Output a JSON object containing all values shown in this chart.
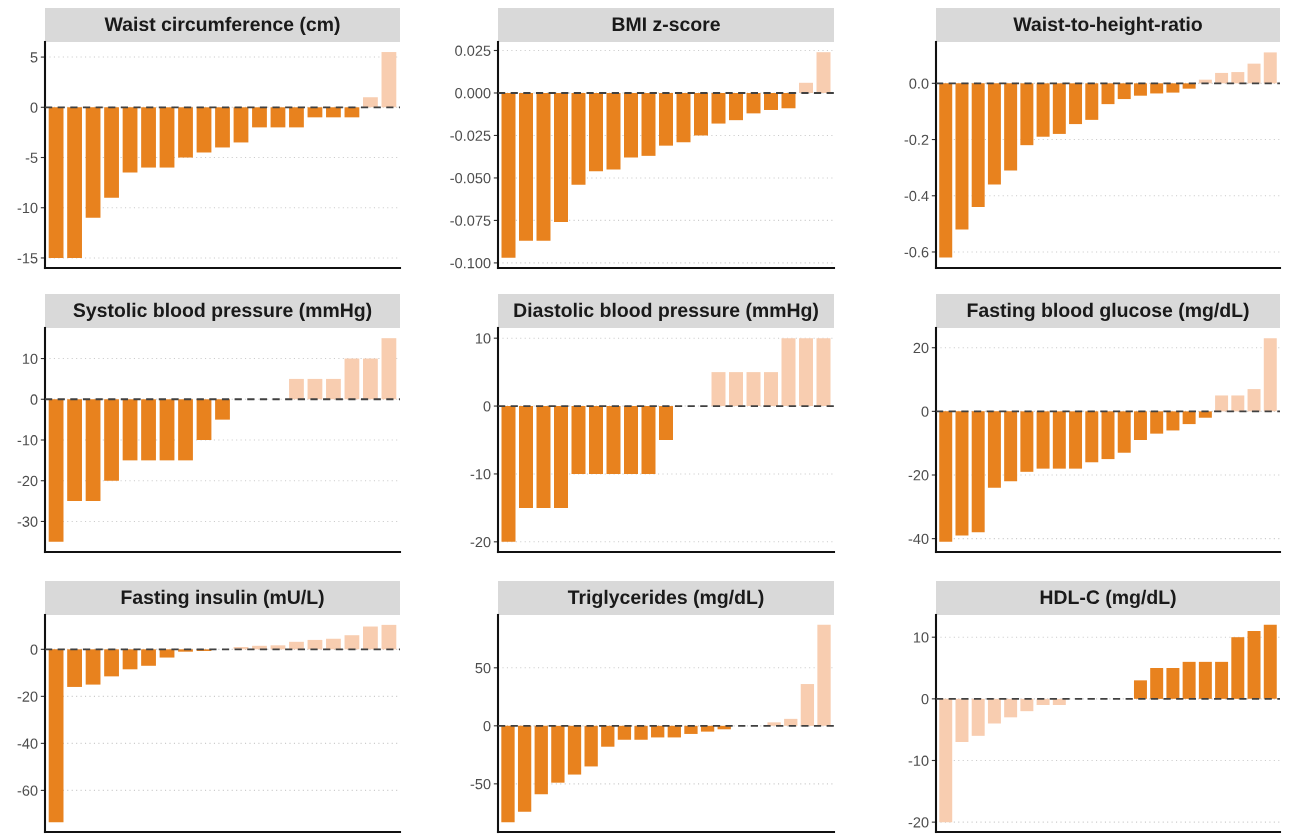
{
  "chart_data": [
    {
      "type": "bar",
      "title": "Waist circumference (cm)",
      "categories": [
        null,
        null,
        null,
        null,
        null,
        null,
        null,
        null,
        null,
        null,
        null,
        null,
        null,
        null,
        null,
        null,
        null,
        null,
        null
      ],
      "values": [
        -15,
        -15,
        -11,
        -9,
        -6.5,
        -6,
        -6,
        -5,
        -4.5,
        -4,
        -3.5,
        -2,
        -2,
        -2,
        -1,
        -1,
        -1,
        1,
        5.5
      ],
      "colors": [
        "#e8821e",
        "#e8821e",
        "#e8821e",
        "#e8821e",
        "#e8821e",
        "#e8821e",
        "#e8821e",
        "#e8821e",
        "#e8821e",
        "#e8821e",
        "#e8821e",
        "#e8821e",
        "#e8821e",
        "#e8821e",
        "#e8821e",
        "#e8821e",
        "#e8821e",
        "#f8cdb0",
        "#f8cdb0"
      ],
      "ylim": [
        -16,
        6.5
      ],
      "yticks": [
        -15,
        -10,
        -5,
        0,
        5
      ],
      "grid": "y",
      "tick_labels": "y",
      "ref_lines": [
        {
          "axis": "y",
          "value": 0,
          "line_style": "dashed",
          "color": "#404040"
        }
      ]
    },
    {
      "type": "bar",
      "title": "BMI z-score",
      "categories": [
        null,
        null,
        null,
        null,
        null,
        null,
        null,
        null,
        null,
        null,
        null,
        null,
        null,
        null,
        null,
        null,
        null,
        null,
        null
      ],
      "values": [
        -0.097,
        -0.087,
        -0.087,
        -0.076,
        -0.054,
        -0.046,
        -0.045,
        -0.038,
        -0.037,
        -0.031,
        -0.029,
        -0.025,
        -0.018,
        -0.016,
        -0.012,
        -0.01,
        -0.009,
        0.006,
        0.024
      ],
      "colors": [
        "#e8821e",
        "#e8821e",
        "#e8821e",
        "#e8821e",
        "#e8821e",
        "#e8821e",
        "#e8821e",
        "#e8821e",
        "#e8821e",
        "#e8821e",
        "#e8821e",
        "#e8821e",
        "#e8821e",
        "#e8821e",
        "#e8821e",
        "#e8821e",
        "#e8821e",
        "#f8cdb0",
        "#f8cdb0"
      ],
      "ylim": [
        -0.103,
        0.03
      ],
      "yticks": [
        {
          "value": -0.1,
          "label": "-0.100"
        },
        {
          "value": -0.075,
          "label": "-0.075"
        },
        {
          "value": -0.05,
          "label": "-0.050"
        },
        {
          "value": -0.025,
          "label": "-0.025"
        },
        {
          "value": 0,
          "label": "0.000"
        },
        {
          "value": 0.025,
          "label": "0.025"
        }
      ],
      "grid": "y",
      "tick_labels": "y",
      "ref_lines": [
        {
          "axis": "y",
          "value": 0,
          "line_style": "dashed",
          "color": "#404040"
        }
      ]
    },
    {
      "type": "bar",
      "title": "Waist-to-height-ratio",
      "categories": [
        null,
        null,
        null,
        null,
        null,
        null,
        null,
        null,
        null,
        null,
        null,
        null,
        null,
        null,
        null,
        null,
        null,
        null,
        null,
        null,
        null
      ],
      "values": [
        -0.62,
        -0.52,
        -0.44,
        -0.36,
        -0.31,
        -0.22,
        -0.19,
        -0.18,
        -0.145,
        -0.13,
        -0.074,
        -0.056,
        -0.044,
        -0.036,
        -0.033,
        -0.019,
        0.013,
        0.037,
        0.04,
        0.07,
        0.11
      ],
      "colors": [
        "#e8821e",
        "#e8821e",
        "#e8821e",
        "#e8821e",
        "#e8821e",
        "#e8821e",
        "#e8821e",
        "#e8821e",
        "#e8821e",
        "#e8821e",
        "#e8821e",
        "#e8821e",
        "#e8821e",
        "#e8821e",
        "#e8821e",
        "#e8821e",
        "#f8cdb0",
        "#f8cdb0",
        "#f8cdb0",
        "#f8cdb0",
        "#f8cdb0"
      ],
      "ylim": [
        -0.657,
        0.147
      ],
      "yticks": [
        {
          "value": -0.6,
          "label": "-0.6"
        },
        {
          "value": -0.4,
          "label": "-0.4"
        },
        {
          "value": -0.2,
          "label": "-0.2"
        },
        {
          "value": 0,
          "label": "0.0"
        }
      ],
      "grid": "y",
      "tick_labels": "y",
      "ref_lines": [
        {
          "axis": "y",
          "value": 0,
          "line_style": "dashed",
          "color": "#404040"
        }
      ]
    },
    {
      "type": "bar",
      "title": "Systolic blood pressure (mmHg)",
      "categories": [
        null,
        null,
        null,
        null,
        null,
        null,
        null,
        null,
        null,
        null,
        null,
        null,
        null,
        null,
        null,
        null,
        null,
        null,
        null
      ],
      "values": [
        -35,
        -25,
        -25,
        -20,
        -15,
        -15,
        -15,
        -15,
        -10,
        -5,
        0,
        0,
        0,
        5,
        5,
        5,
        10,
        10,
        15
      ],
      "colors": [
        "#e8821e",
        "#e8821e",
        "#e8821e",
        "#e8821e",
        "#e8821e",
        "#e8821e",
        "#e8821e",
        "#e8821e",
        "#e8821e",
        "#e8821e",
        "#e8821e",
        "#e8821e",
        "#e8821e",
        "#f8cdb0",
        "#f8cdb0",
        "#f8cdb0",
        "#f8cdb0",
        "#f8cdb0",
        "#f8cdb0"
      ],
      "ylim": [
        -37.5,
        17.5
      ],
      "yticks": [
        -30,
        -20,
        -10,
        0,
        10
      ],
      "grid": "y",
      "tick_labels": "y",
      "ref_lines": [
        {
          "axis": "y",
          "value": 0,
          "line_style": "dashed",
          "color": "#404040"
        }
      ]
    },
    {
      "type": "bar",
      "title": "Diastolic blood pressure (mmHg)",
      "categories": [
        null,
        null,
        null,
        null,
        null,
        null,
        null,
        null,
        null,
        null,
        null,
        null,
        null,
        null,
        null,
        null,
        null,
        null,
        null
      ],
      "values": [
        -20,
        -15,
        -15,
        -15,
        -10,
        -10,
        -10,
        -10,
        -10,
        -5,
        0,
        0,
        5,
        5,
        5,
        5,
        10,
        10,
        10
      ],
      "colors": [
        "#e8821e",
        "#e8821e",
        "#e8821e",
        "#e8821e",
        "#e8821e",
        "#e8821e",
        "#e8821e",
        "#e8821e",
        "#e8821e",
        "#e8821e",
        "#e8821e",
        "#e8821e",
        "#f8cdb0",
        "#f8cdb0",
        "#f8cdb0",
        "#f8cdb0",
        "#f8cdb0",
        "#f8cdb0",
        "#f8cdb0"
      ],
      "ylim": [
        -21.5,
        11.5
      ],
      "yticks": [
        -20,
        -10,
        0,
        10
      ],
      "grid": "y",
      "tick_labels": "y",
      "ref_lines": [
        {
          "axis": "y",
          "value": 0,
          "line_style": "dashed",
          "color": "#404040"
        }
      ]
    },
    {
      "type": "bar",
      "title": "Fasting blood glucose (mg/dL)",
      "categories": [
        null,
        null,
        null,
        null,
        null,
        null,
        null,
        null,
        null,
        null,
        null,
        null,
        null,
        null,
        null,
        null,
        null,
        null,
        null,
        null,
        null
      ],
      "values": [
        -41,
        -39,
        -38,
        -24,
        -22,
        -19,
        -18,
        -18,
        -18,
        -16,
        -15,
        -13,
        -9,
        -7,
        -6,
        -4,
        -2,
        5,
        5,
        7,
        23
      ],
      "colors": [
        "#e8821e",
        "#e8821e",
        "#e8821e",
        "#e8821e",
        "#e8821e",
        "#e8821e",
        "#e8821e",
        "#e8821e",
        "#e8821e",
        "#e8821e",
        "#e8821e",
        "#e8821e",
        "#e8821e",
        "#e8821e",
        "#e8821e",
        "#e8821e",
        "#e8821e",
        "#f8cdb0",
        "#f8cdb0",
        "#f8cdb0",
        "#f8cdb0"
      ],
      "ylim": [
        -44.2,
        26.2
      ],
      "yticks": [
        -40,
        -20,
        0,
        20
      ],
      "grid": "y",
      "tick_labels": "y",
      "ref_lines": [
        {
          "axis": "y",
          "value": 0,
          "line_style": "dashed",
          "color": "#404040"
        }
      ]
    },
    {
      "type": "bar",
      "title": "Fasting insulin (mU/L)",
      "categories": [
        null,
        null,
        null,
        null,
        null,
        null,
        null,
        null,
        null,
        null,
        null,
        null,
        null,
        null,
        null,
        null,
        null,
        null,
        null
      ],
      "values": [
        -73.5,
        -16,
        -15,
        -11.5,
        -8.5,
        -7,
        -3.5,
        -1,
        -0.7,
        null,
        1,
        1.5,
        1.7,
        3.2,
        4,
        4.5,
        6,
        9.7,
        10.4
      ],
      "colors": [
        "#e8821e",
        "#e8821e",
        "#e8821e",
        "#e8821e",
        "#e8821e",
        "#e8821e",
        "#e8821e",
        "#e8821e",
        "#e8821e",
        "#f8cdb0",
        "#f8cdb0",
        "#f8cdb0",
        "#f8cdb0",
        "#f8cdb0",
        "#f8cdb0",
        "#f8cdb0",
        "#f8cdb0",
        "#f8cdb0",
        "#f8cdb0"
      ],
      "ylim": [
        -77.7,
        14.6
      ],
      "yticks": [
        -60,
        -40,
        -20,
        0
      ],
      "grid": "y",
      "tick_labels": "y",
      "ref_lines": [
        {
          "axis": "y",
          "value": 0,
          "line_style": "dashed",
          "color": "#404040"
        }
      ]
    },
    {
      "type": "bar",
      "title": "Triglycerides (mg/dL)",
      "categories": [
        null,
        null,
        null,
        null,
        null,
        null,
        null,
        null,
        null,
        null,
        null,
        null,
        null,
        null,
        null,
        null,
        null,
        null,
        null,
        null
      ],
      "values": [
        -83,
        -74,
        -59,
        -49,
        -42,
        -35,
        -18,
        -12,
        -12,
        -10,
        -10,
        -7,
        -5,
        -3,
        0,
        0,
        3,
        6,
        36,
        87
      ],
      "colors": [
        "#e8821e",
        "#e8821e",
        "#e8821e",
        "#e8821e",
        "#e8821e",
        "#e8821e",
        "#e8821e",
        "#e8821e",
        "#e8821e",
        "#e8821e",
        "#e8821e",
        "#e8821e",
        "#e8821e",
        "#e8821e",
        "#e8821e",
        "#e8821e",
        "#f8cdb0",
        "#f8cdb0",
        "#f8cdb0",
        "#f8cdb0"
      ],
      "ylim": [
        -91.5,
        95.5
      ],
      "yticks": [
        -50,
        0,
        50
      ],
      "grid": "y",
      "tick_labels": "y",
      "ref_lines": [
        {
          "axis": "y",
          "value": 0,
          "line_style": "dashed",
          "color": "#404040"
        }
      ]
    },
    {
      "type": "bar",
      "title": "HDL-C (mg/dL)",
      "categories": [
        null,
        null,
        null,
        null,
        null,
        null,
        null,
        null,
        null,
        null,
        null,
        null,
        null,
        null,
        null,
        null,
        null,
        null,
        null,
        null,
        null
      ],
      "values": [
        -20,
        -7,
        -6,
        -4,
        -3,
        -2,
        -1,
        -1,
        0,
        0,
        0,
        0,
        3,
        5,
        5,
        6,
        6,
        6,
        10,
        11,
        12
      ],
      "colors": [
        "#f8cdb0",
        "#f8cdb0",
        "#f8cdb0",
        "#f8cdb0",
        "#f8cdb0",
        "#f8cdb0",
        "#f8cdb0",
        "#f8cdb0",
        "#f8cdb0",
        "#f8cdb0",
        "#f8cdb0",
        "#f8cdb0",
        "#e8821e",
        "#e8821e",
        "#e8821e",
        "#e8821e",
        "#e8821e",
        "#e8821e",
        "#e8821e",
        "#e8821e",
        "#e8821e"
      ],
      "ylim": [
        -21.6,
        13.6
      ],
      "yticks": [
        -20,
        -10,
        0,
        10
      ],
      "grid": "y",
      "tick_labels": "y",
      "ref_lines": [
        {
          "axis": "y",
          "value": 0,
          "line_style": "dashed",
          "color": "#404040"
        }
      ]
    }
  ]
}
